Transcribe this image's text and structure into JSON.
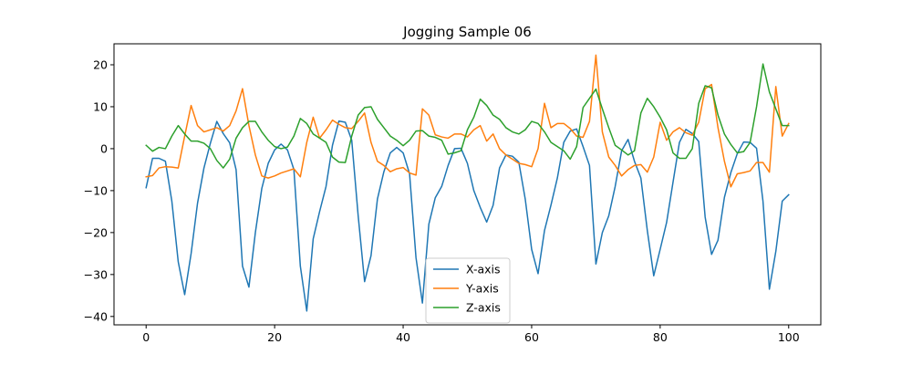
{
  "chart_data": {
    "type": "line",
    "title": "Jogging Sample 06",
    "xlabel": "",
    "ylabel": "",
    "xlim": [
      -5,
      105
    ],
    "ylim": [
      -42,
      25
    ],
    "xticks": [
      0,
      20,
      40,
      60,
      80,
      100
    ],
    "yticks": [
      -40,
      -30,
      -20,
      -10,
      0,
      10,
      20
    ],
    "grid": false,
    "legend_position": "lower center",
    "x": [
      0,
      1,
      2,
      3,
      4,
      5,
      6,
      7,
      8,
      9,
      10,
      11,
      12,
      13,
      14,
      15,
      16,
      17,
      18,
      19,
      20,
      21,
      22,
      23,
      24,
      25,
      26,
      27,
      28,
      29,
      30,
      31,
      32,
      33,
      34,
      35,
      36,
      37,
      38,
      39,
      40,
      41,
      42,
      43,
      44,
      45,
      46,
      47,
      48,
      49,
      50,
      51,
      52,
      53,
      54,
      55,
      56,
      57,
      58,
      59,
      60,
      61,
      62,
      63,
      64,
      65,
      66,
      67,
      68,
      69,
      70,
      71,
      72,
      73,
      74,
      75,
      76,
      77,
      78,
      79,
      80,
      81,
      82,
      83,
      84,
      85,
      86,
      87,
      88,
      89,
      90,
      91,
      92,
      93,
      94,
      95,
      96,
      97,
      98,
      99,
      100
    ],
    "series": [
      {
        "name": "X-axis",
        "color": "#1f77b4",
        "values": [
          -9.3,
          -2.3,
          -2.3,
          -3,
          -12.5,
          -27,
          -34.8,
          -25,
          -13,
          -4.6,
          1.3,
          6.5,
          3.6,
          1.4,
          -5,
          -28,
          -33,
          -20,
          -9.5,
          -3.5,
          -0.3,
          1.1,
          -0.3,
          -5,
          -28,
          -38.7,
          -21.5,
          -15,
          -9,
          0.8,
          6.6,
          6.3,
          2,
          -16,
          -31.7,
          -25.5,
          -12,
          -5.5,
          -1,
          0.3,
          -1,
          -6,
          -26,
          -36.8,
          -18,
          -11.7,
          -9,
          -4,
          0,
          0.1,
          -3.5,
          -10,
          -14,
          -17.5,
          -13.5,
          -4.6,
          -1.5,
          -1.8,
          -3.2,
          -12,
          -24,
          -29.8,
          -19.5,
          -13.5,
          -7,
          1.5,
          4.2,
          4.7,
          0.5,
          -4,
          -27.5,
          -20,
          -16,
          -9,
          -0.5,
          2.2,
          -3,
          -7,
          -19.5,
          -30.3,
          -24,
          -17.6,
          -8,
          1.5,
          4.6,
          3.6,
          1.7,
          -16.3,
          -25.2,
          -21.8,
          -11.6,
          -5.7,
          -1.2,
          1.6,
          1.5,
          0.1,
          -12.5,
          -33.5,
          -24.5,
          -12.5,
          -11
        ]
      },
      {
        "name": "Y-axis",
        "color": "#ff7f0e",
        "values": [
          -6.7,
          -6.4,
          -4.6,
          -4.3,
          -4.4,
          -4.6,
          3,
          10.3,
          5.5,
          4,
          4.5,
          5,
          4.2,
          5.5,
          9,
          14.3,
          5.5,
          -1.5,
          -6.5,
          -7,
          -6.5,
          -5.8,
          -5.3,
          -4.8,
          -6.7,
          1.5,
          7.5,
          2.5,
          4.5,
          6.8,
          5.8,
          5,
          4.8,
          6.5,
          8.5,
          1.5,
          -3,
          -4,
          -5.5,
          -4.8,
          -4.5,
          -5.8,
          -6.3,
          9.5,
          8,
          3.3,
          2.8,
          2.5,
          3.5,
          3.5,
          2.8,
          4.5,
          5.5,
          1.8,
          3.5,
          0,
          -1.5,
          -2.5,
          -3.5,
          -3.8,
          -4.3,
          0,
          10.8,
          5,
          6,
          6,
          4.8,
          3,
          2.7,
          6.5,
          22.3,
          4,
          -2,
          -4,
          -6.5,
          -5,
          -4,
          -3.8,
          -5.6,
          -2,
          6.3,
          2,
          4,
          5,
          3.8,
          3.2,
          6.3,
          14.3,
          15.3,
          5,
          -3,
          -9.1,
          -6,
          -5.7,
          -5.3,
          -3.3,
          -3.3,
          -5.6,
          14.8,
          3,
          6
        ]
      },
      {
        "name": "Z-axis",
        "color": "#2ca02c",
        "values": [
          0.8,
          -0.6,
          0.3,
          0,
          3,
          5.5,
          3.5,
          1.8,
          1.8,
          1.3,
          0,
          -2.8,
          -4.6,
          -2.5,
          2.5,
          5,
          6.5,
          6.5,
          4,
          2,
          0.5,
          0,
          0.4,
          3,
          7.2,
          6,
          3.5,
          2.5,
          1.5,
          -2,
          -3.2,
          -3.3,
          3,
          8,
          9.8,
          10,
          7,
          5,
          3,
          2,
          0.7,
          2,
          4.2,
          4.3,
          3,
          2.7,
          2,
          -1.3,
          -1,
          -0.5,
          4.5,
          7.5,
          11.8,
          10.3,
          8,
          7,
          5,
          4,
          3.5,
          4.5,
          6.5,
          6,
          4,
          1.5,
          0.5,
          -0.5,
          -2.5,
          0.5,
          9.8,
          12,
          14.2,
          9.5,
          5,
          0.8,
          -0.3,
          -1.5,
          -0.5,
          8.5,
          12,
          10,
          7.5,
          4.5,
          -1,
          -2.3,
          -2.3,
          0,
          10.8,
          15,
          14.5,
          8,
          3.5,
          1,
          -1,
          -0.7,
          1.5,
          10,
          20.2,
          13.5,
          9.5,
          5.5,
          5.5
        ]
      }
    ]
  }
}
